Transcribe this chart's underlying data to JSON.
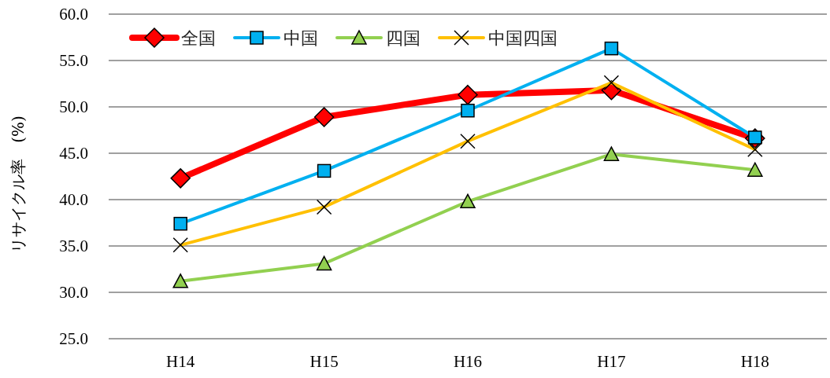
{
  "chart_data": {
    "type": "line",
    "ylabel": "リサイクル率　(%)",
    "categories": [
      "H14",
      "H15",
      "H16",
      "H17",
      "H18"
    ],
    "series": [
      {
        "name": "全国",
        "color": "#ff0000",
        "marker": "diamond",
        "values": [
          42.3,
          48.9,
          51.3,
          51.8,
          46.6
        ]
      },
      {
        "name": "中国",
        "color": "#00b0f0",
        "marker": "square",
        "values": [
          37.4,
          43.1,
          49.6,
          56.3,
          46.7
        ]
      },
      {
        "name": "四国",
        "color": "#92d050",
        "marker": "triangle",
        "values": [
          31.2,
          33.1,
          39.8,
          44.9,
          43.2
        ]
      },
      {
        "name": "中国四国",
        "color": "#ffc000",
        "marker": "cross",
        "values": [
          35.1,
          39.2,
          46.3,
          52.6,
          45.4
        ]
      }
    ],
    "ylim": [
      25,
      60
    ],
    "yticks": [
      {
        "value": 25,
        "label": "25.0"
      },
      {
        "value": 30,
        "label": "30.0"
      },
      {
        "value": 35,
        "label": "35.0"
      },
      {
        "value": 40,
        "label": "40.0"
      },
      {
        "value": 45,
        "label": "45.0"
      },
      {
        "value": 50,
        "label": "50.0"
      },
      {
        "value": 55,
        "label": "55.0"
      },
      {
        "value": 60,
        "label": "60.0"
      }
    ],
    "grid": "y",
    "legend": "top left",
    "line_style": "solid"
  }
}
